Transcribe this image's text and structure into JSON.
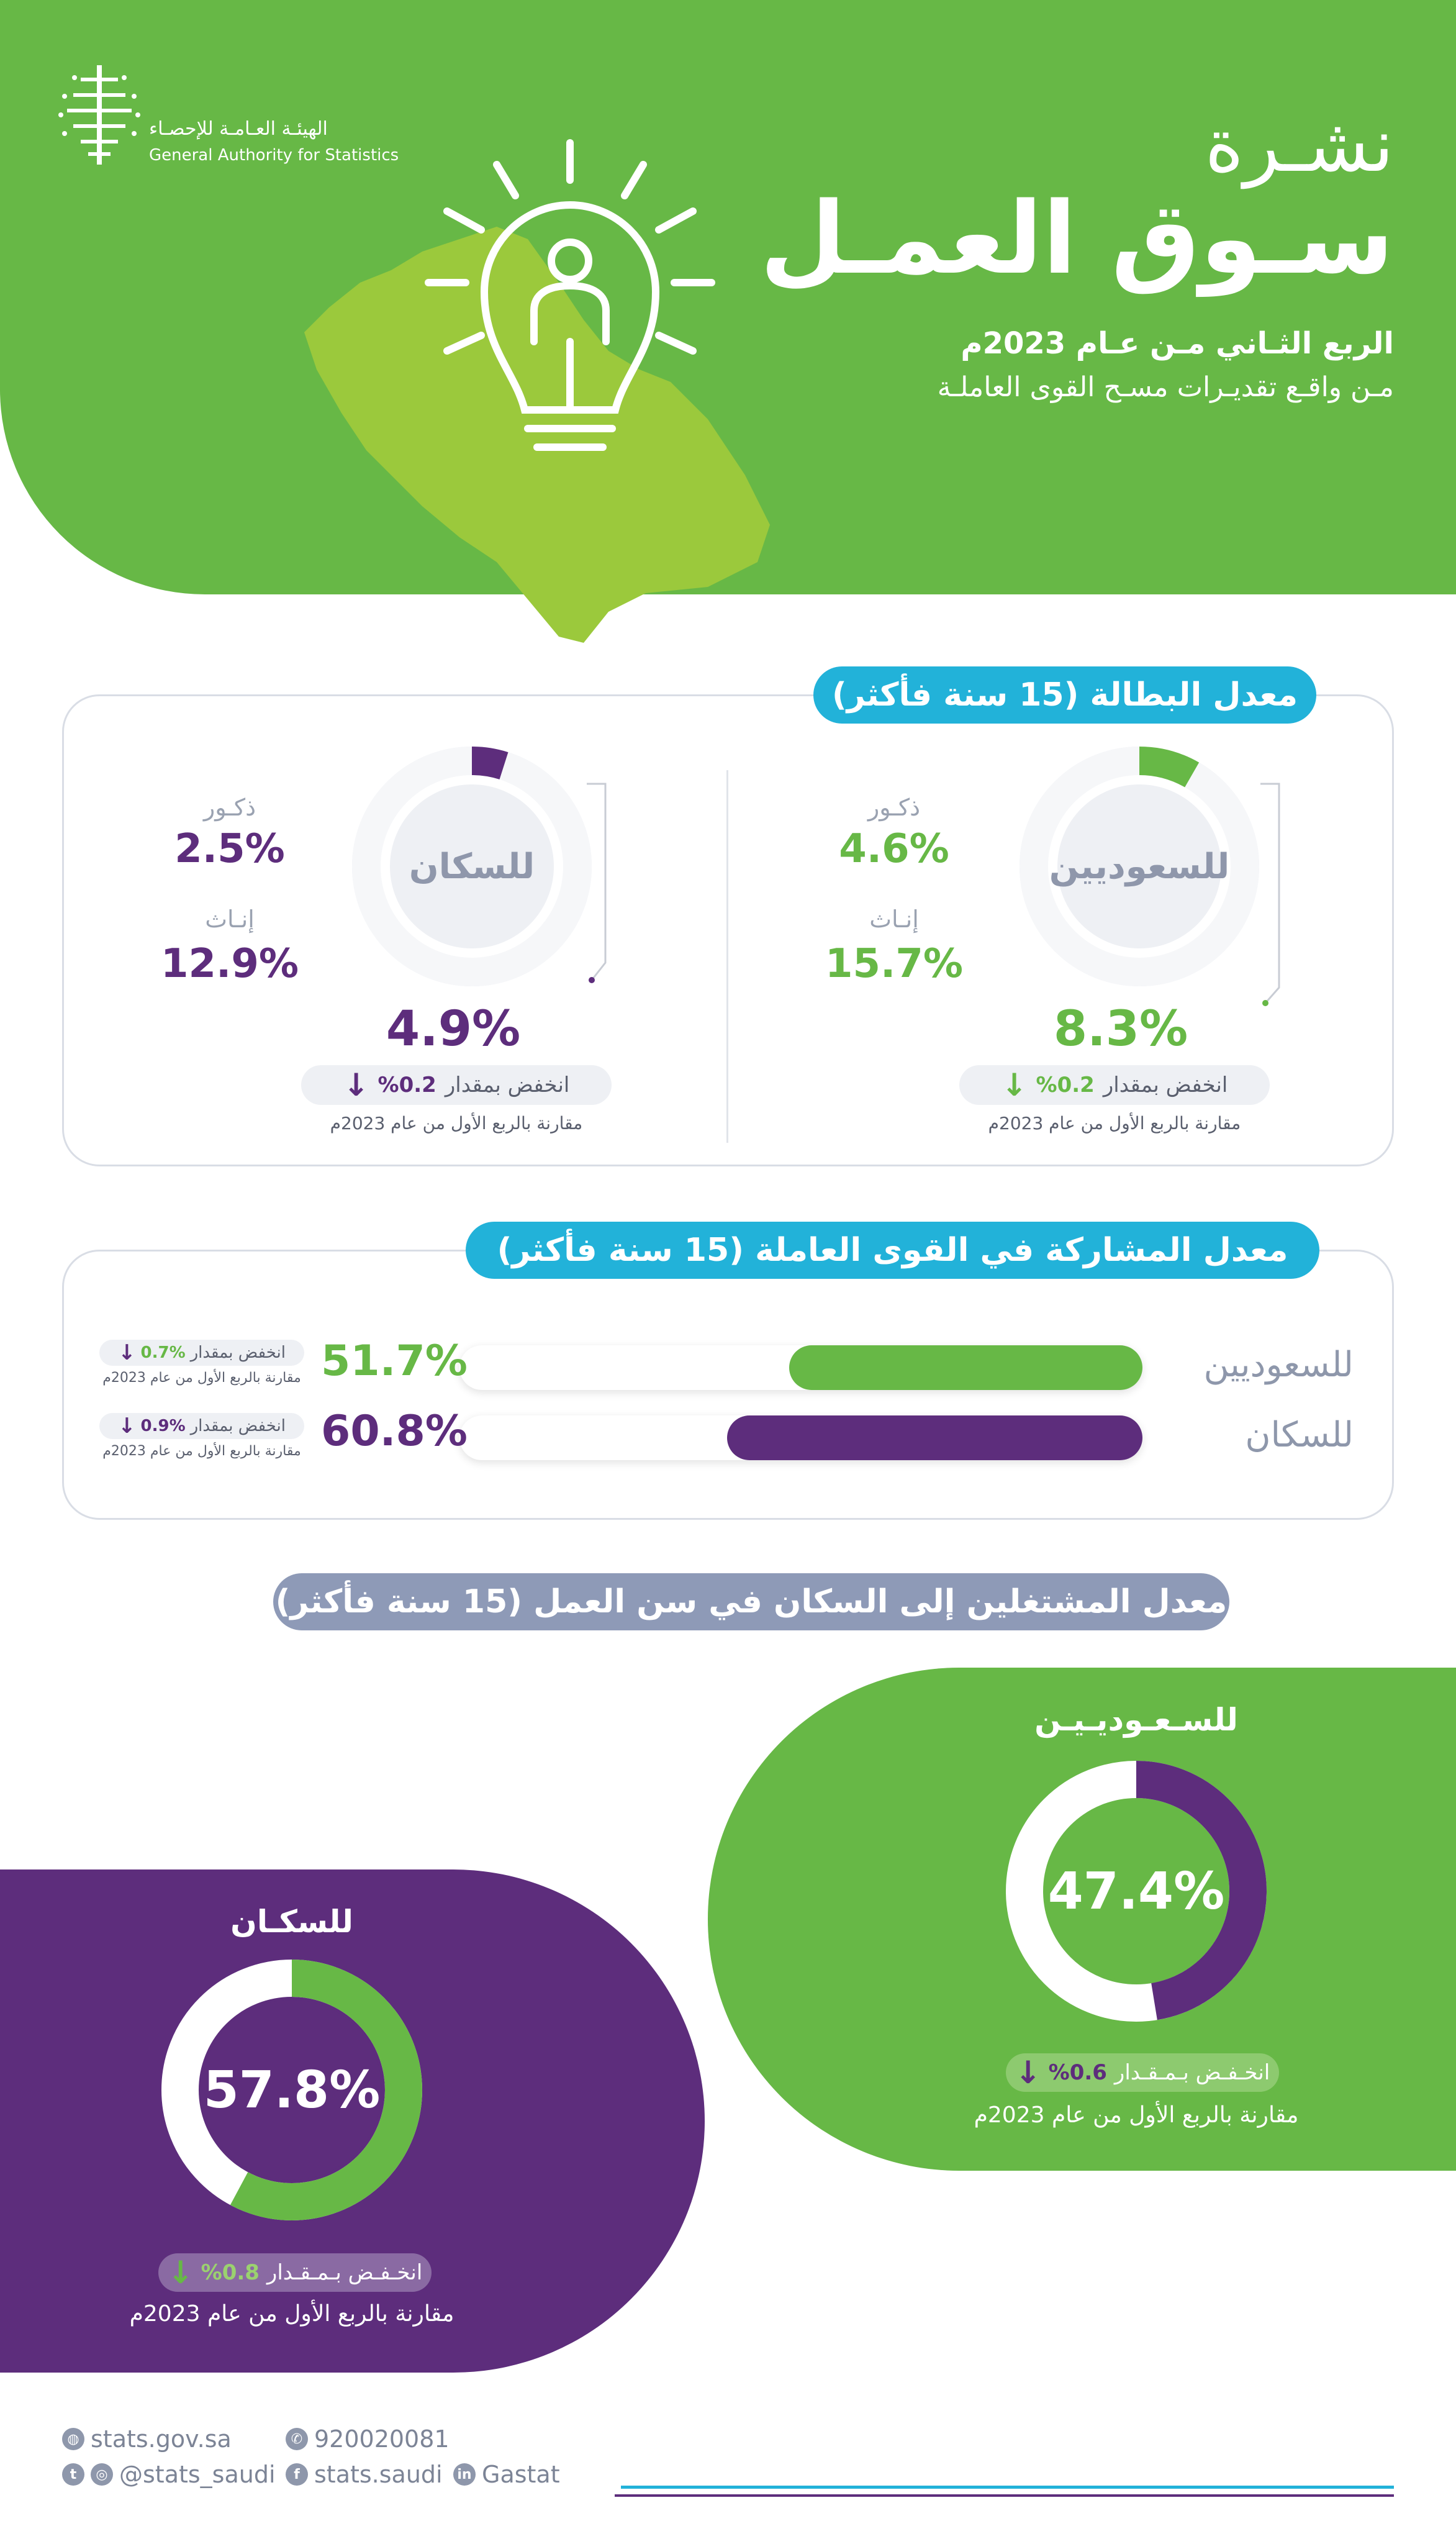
{
  "header": {
    "logo_ar": "الهيئـة العـامـة للإحصـاء",
    "logo_en": "General Authority for Statistics",
    "title_small": "نشـرة",
    "title_big": "سـوق العمـل",
    "subtitle_1": "الربع الثـاني مـن عـام 2023م",
    "subtitle_2": "مـن واقـع تقديـرات مسـح القوى العاملـة",
    "colors": {
      "green": "#67b846",
      "purple": "#5d2d7c",
      "cyan": "#22b2d9",
      "grey": "#8e9ab7"
    }
  },
  "unemployment": {
    "heading": "معدل البطالة (15 سنة فأكثر)",
    "saudi": {
      "label": "للسعوديين",
      "male_caption": "ذكـور",
      "male_value": "4.6%",
      "female_caption": "إنـاث",
      "female_value": "15.7%",
      "total_value": "8.3%",
      "total_fraction": 0.083,
      "change_text": "انخفض بمقدار",
      "change_value": "%0.2",
      "change_note": "مقارنة بالربع الأول من عام 2023م"
    },
    "population": {
      "label": "للسكان",
      "male_caption": "ذكـور",
      "male_value": "2.5%",
      "female_caption": "إنـاث",
      "female_value": "12.9%",
      "total_value": "4.9%",
      "total_fraction": 0.049,
      "change_text": "انخفض بمقدار",
      "change_value": "%0.2",
      "change_note": "مقارنة بالربع الأول من عام 2023م"
    }
  },
  "participation": {
    "heading": "معدل المشاركة في القوى العاملة  (15 سنة فأكثر)",
    "rows": [
      {
        "label": "للسعوديين",
        "value": "51.7%",
        "fraction": 0.517,
        "change_text": "انخفض بمقدار",
        "change_value": "0.7%",
        "change_note": "مقارنة بالربع الأول من عام 2023م"
      },
      {
        "label": "للسكان",
        "value": "60.8%",
        "fraction": 0.608,
        "change_text": "انخفض بمقدار",
        "change_value": "0.9%",
        "change_note": "مقارنة بالربع الأول من عام 2023م"
      }
    ]
  },
  "employment": {
    "heading": "معدل المشتغلين إلى السكان في سن العمل (15 سنة فأكثر)",
    "saudi": {
      "label": "للسـعـوديـيـن",
      "value": "47.4%",
      "fraction": 0.474,
      "change_text": "انخـفـض بـمـقـدار",
      "change_value": "%0.6",
      "change_note": "مقارنة بالربع الأول من عام 2023م"
    },
    "population": {
      "label": "للسكـان",
      "value": "57.8%",
      "fraction": 0.578,
      "change_text": "انخـفـض بـمـقـدار",
      "change_value": "%0.8",
      "change_note": "مقارنة بالربع الأول من عام 2023م"
    }
  },
  "footer": {
    "website": "stats.gov.sa",
    "phone": "920020081",
    "twitter": "@stats_saudi",
    "facebook": "stats.saudi",
    "linkedin": "Gastat"
  }
}
